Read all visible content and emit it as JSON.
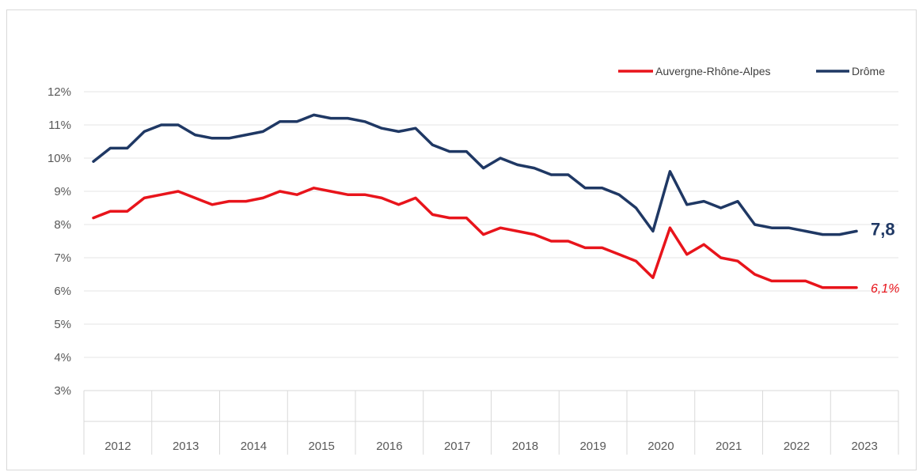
{
  "chart_data": {
    "type": "line",
    "title": "",
    "xlabel": "",
    "ylabel": "",
    "ylim": [
      3,
      12
    ],
    "y_ticks": [
      "3%",
      "4%",
      "5%",
      "6%",
      "7%",
      "8%",
      "9%",
      "10%",
      "11%",
      "12%"
    ],
    "x_categories": [
      "2012",
      "2013",
      "2014",
      "2015",
      "2016",
      "2017",
      "2018",
      "2019",
      "2020",
      "2021",
      "2022",
      "2023"
    ],
    "grid": "horizontal",
    "legend_position": "top-right",
    "series": [
      {
        "name": "Auvergne-Rhône-Alpes",
        "color": "#e8141b",
        "end_label": "6,1%",
        "x": [
          "2012-T1",
          "2012-T2",
          "2012-T3",
          "2012-T4",
          "2013-T1",
          "2013-T2",
          "2013-T3",
          "2013-T4",
          "2014-T1",
          "2014-T2",
          "2014-T3",
          "2014-T4",
          "2015-T1",
          "2015-T2",
          "2015-T3",
          "2015-T4",
          "2016-T1",
          "2016-T2",
          "2016-T3",
          "2016-T4",
          "2017-T1",
          "2017-T2",
          "2017-T3",
          "2017-T4",
          "2018-T1",
          "2018-T2",
          "2018-T3",
          "2018-T4",
          "2019-T1",
          "2019-T2",
          "2019-T3",
          "2019-T4",
          "2020-T1",
          "2020-T2",
          "2020-T3",
          "2020-T4",
          "2021-T1",
          "2021-T2",
          "2021-T3",
          "2021-T4",
          "2022-T1",
          "2022-T2",
          "2022-T3",
          "2022-T4",
          "2023-T1",
          "2023-T2"
        ],
        "values": [
          8.2,
          8.4,
          8.4,
          8.8,
          8.9,
          9.0,
          8.8,
          8.6,
          8.7,
          8.7,
          8.8,
          9.0,
          8.9,
          9.1,
          9.0,
          8.9,
          8.9,
          8.8,
          8.6,
          8.8,
          8.3,
          8.2,
          8.2,
          7.7,
          7.9,
          7.8,
          7.7,
          7.5,
          7.5,
          7.3,
          7.3,
          7.1,
          6.9,
          6.4,
          7.9,
          7.1,
          7.4,
          7.0,
          6.9,
          6.5,
          6.3,
          6.3,
          6.3,
          6.1,
          6.1,
          6.1
        ]
      },
      {
        "name": "Drôme",
        "color": "#1f3864",
        "end_label": "7,8",
        "x": [
          "2012-T1",
          "2012-T2",
          "2012-T3",
          "2012-T4",
          "2013-T1",
          "2013-T2",
          "2013-T3",
          "2013-T4",
          "2014-T1",
          "2014-T2",
          "2014-T3",
          "2014-T4",
          "2015-T1",
          "2015-T2",
          "2015-T3",
          "2015-T4",
          "2016-T1",
          "2016-T2",
          "2016-T3",
          "2016-T4",
          "2017-T1",
          "2017-T2",
          "2017-T3",
          "2017-T4",
          "2018-T1",
          "2018-T2",
          "2018-T3",
          "2018-T4",
          "2019-T1",
          "2019-T2",
          "2019-T3",
          "2019-T4",
          "2020-T1",
          "2020-T2",
          "2020-T3",
          "2020-T4",
          "2021-T1",
          "2021-T2",
          "2021-T3",
          "2021-T4",
          "2022-T1",
          "2022-T2",
          "2022-T3",
          "2022-T4",
          "2023-T1",
          "2023-T2"
        ],
        "values": [
          9.9,
          10.3,
          10.3,
          10.8,
          11.0,
          11.0,
          10.7,
          10.6,
          10.6,
          10.7,
          10.8,
          11.1,
          11.1,
          11.3,
          11.2,
          11.2,
          11.1,
          10.9,
          10.8,
          10.9,
          10.4,
          10.2,
          10.2,
          9.7,
          10.0,
          9.8,
          9.7,
          9.5,
          9.5,
          9.1,
          9.1,
          8.9,
          8.5,
          7.8,
          9.6,
          8.6,
          8.7,
          8.5,
          8.7,
          8.0,
          7.9,
          7.9,
          7.8,
          7.7,
          7.7,
          7.8
        ]
      }
    ]
  }
}
